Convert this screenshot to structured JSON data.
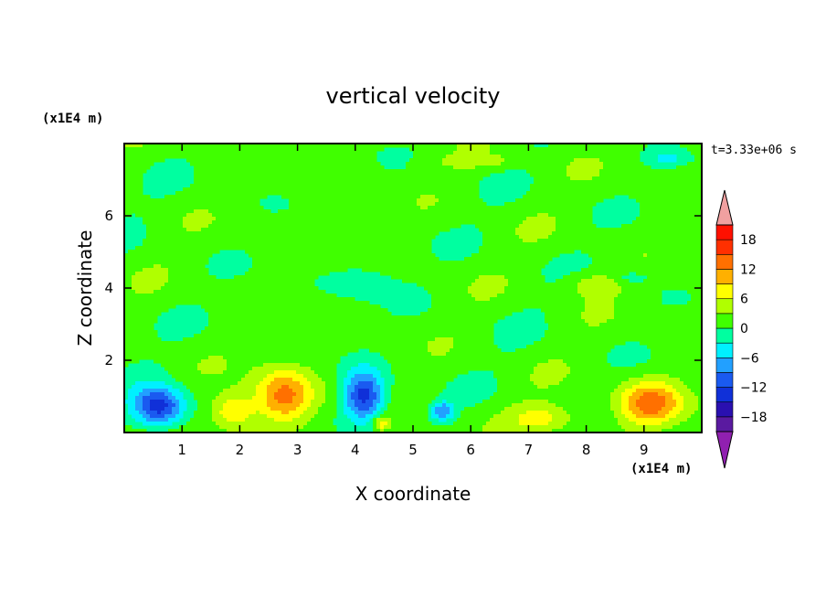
{
  "chart_data": {
    "type": "heatmap",
    "title": "vertical velocity",
    "xlabel": "X coordinate",
    "ylabel": "Z coordinate",
    "x_unit": "(x1E4 m)",
    "z_unit": "(x1E4 m)",
    "time_label": "t=3.33e+06 s",
    "xlim": [
      0,
      10
    ],
    "ylim": [
      0,
      8
    ],
    "x_ticks": [
      1,
      2,
      3,
      4,
      5,
      6,
      7,
      8,
      9
    ],
    "y_ticks": [
      2,
      4,
      6
    ],
    "colorbar": {
      "levels": [
        -21,
        -18,
        -15,
        -12,
        -9,
        -6,
        -3,
        0,
        3,
        6,
        9,
        12,
        15,
        18,
        21
      ],
      "tick_labels": [
        18,
        12,
        6,
        0,
        -6,
        -12,
        -18
      ],
      "colors": [
        "#5a1aa0",
        "#2a10b0",
        "#1030d8",
        "#1a5af0",
        "#22a0ff",
        "#00f0ff",
        "#00ffa0",
        "#40ff00",
        "#b0ff00",
        "#ffff00",
        "#ffb000",
        "#ff7000",
        "#ff3000",
        "#ff1000"
      ],
      "extend_low_color": "#9020b0",
      "extend_high_color": "#f0a0a0"
    },
    "features": [
      {
        "x": 0.6,
        "z": 0.7,
        "value": -16,
        "rx": 0.45,
        "rz": 0.55
      },
      {
        "x": 1.9,
        "z": 0.6,
        "value": 9,
        "rx": 0.35,
        "rz": 0.5
      },
      {
        "x": 2.75,
        "z": 1.0,
        "value": 12,
        "rx": 0.5,
        "rz": 0.75
      },
      {
        "x": 4.15,
        "z": 1.0,
        "value": -15,
        "rx": 0.35,
        "rz": 0.7
      },
      {
        "x": 4.45,
        "z": 0.25,
        "value": 8,
        "rx": 0.15,
        "rz": 0.2
      },
      {
        "x": 5.5,
        "z": 0.6,
        "value": -10,
        "rx": 0.2,
        "rz": 0.25
      },
      {
        "x": 7.3,
        "z": 0.4,
        "value": 6,
        "rx": 0.6,
        "rz": 0.4
      },
      {
        "x": 9.1,
        "z": 0.8,
        "value": 12,
        "rx": 0.55,
        "rz": 0.6
      },
      {
        "x": 8.1,
        "z": 4.1,
        "value": 4,
        "rx": 0.5,
        "rz": 0.35
      },
      {
        "x": 6.2,
        "z": 7.5,
        "value": 3,
        "rx": 0.8,
        "rz": 0.2
      },
      {
        "x": 9.4,
        "z": 7.6,
        "value": -4,
        "rx": 0.3,
        "rz": 0.2
      },
      {
        "x": 4.2,
        "z": 4.2,
        "value": -3,
        "rx": 0.6,
        "rz": 0.5
      },
      {
        "x": 8.8,
        "z": 4.3,
        "value": -4,
        "rx": 0.25,
        "rz": 0.15
      }
    ]
  }
}
